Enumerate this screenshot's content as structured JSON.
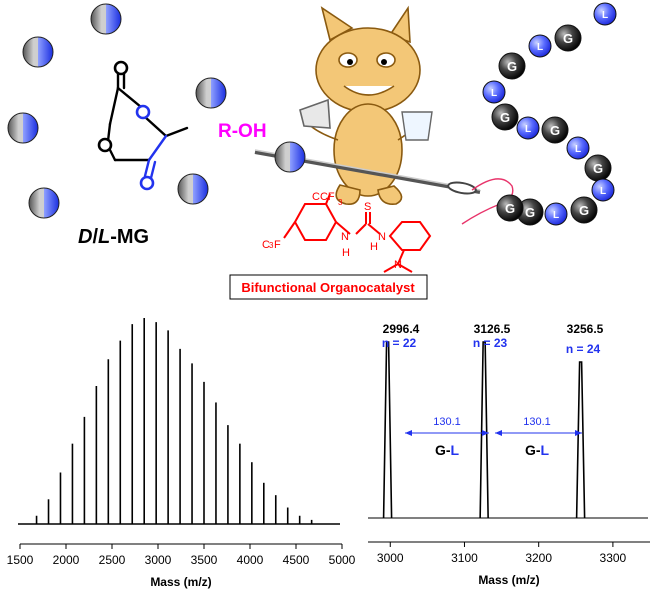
{
  "scheme": {
    "monomer_label": {
      "prefix": "D",
      "sep": "/",
      "mid": "L",
      "suffix": "-MG"
    },
    "initiator_label": "R-OH",
    "catalyst_label": "Bifunctional Organocatalyst",
    "catalyst_groups": {
      "cf3_top": "CF",
      "cf3_top_sub": "3",
      "cf3_left": "F",
      "cf3_left_prefix": "C",
      "cf3_left_sub": "3",
      "s": "S",
      "nh1": "N",
      "h1": "H",
      "nh2": "N",
      "h2": "H",
      "n": "N"
    },
    "chain_sequence": [
      "L",
      "G",
      "L",
      "G",
      "L",
      "G",
      "L",
      "G",
      "L",
      "G",
      "L",
      "G",
      "L",
      "G",
      "G",
      "L",
      "G",
      "L",
      "G"
    ],
    "colors": {
      "blue": "#2233ee",
      "magenta": "#ff00ff",
      "red": "#ff0000",
      "black": "#000000"
    }
  },
  "chart_data": [
    {
      "type": "line",
      "xlabel": "Mass (m/z)",
      "xlim": [
        1500,
        5000
      ],
      "xticks": [
        1500,
        2000,
        2500,
        3000,
        3500,
        4000,
        4500,
        5000
      ],
      "peaks": {
        "x": [
          1680,
          1810,
          1940,
          2070,
          2200,
          2330,
          2460,
          2590,
          2720,
          2850,
          2980,
          3110,
          3240,
          3370,
          3500,
          3630,
          3760,
          3890,
          4020,
          4150,
          4280,
          4410,
          4540,
          4670
        ],
        "y": [
          0.04,
          0.12,
          0.25,
          0.39,
          0.52,
          0.67,
          0.8,
          0.89,
          0.97,
          1.0,
          0.98,
          0.94,
          0.85,
          0.78,
          0.69,
          0.59,
          0.48,
          0.39,
          0.3,
          0.2,
          0.14,
          0.08,
          0.04,
          0.02
        ]
      }
    },
    {
      "type": "line",
      "xlabel": "Mass (m/z)",
      "xlim": [
        2970,
        3350
      ],
      "xticks": [
        3000,
        3100,
        3200,
        3300
      ],
      "peaks": [
        {
          "mass_label": "2996.4",
          "n_label": "n = 22",
          "x": 2996.4,
          "y": 0.88
        },
        {
          "mass_label": "3126.5",
          "n_label": "n = 23",
          "x": 3126.5,
          "y": 0.88
        },
        {
          "mass_label": "3256.5",
          "n_label": "n = 24",
          "x": 3256.5,
          "y": 0.78
        }
      ],
      "annotations": [
        {
          "value": "130.1",
          "unit_g": "G",
          "dash": "-",
          "unit_l": "L"
        },
        {
          "value": "130.1",
          "unit_g": "G",
          "dash": "-",
          "unit_l": "L"
        }
      ]
    }
  ]
}
